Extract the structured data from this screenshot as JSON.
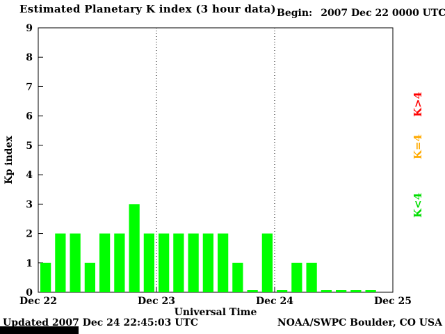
{
  "title": "Estimated Planetary K index (3 hour data)",
  "begin": {
    "label": "Begin:",
    "value": "2007 Dec 22 0000 UTC"
  },
  "legend": [
    {
      "label": "K>4",
      "color": "#ff0000"
    },
    {
      "label": "K=4",
      "color": "#ffaa00"
    },
    {
      "label": "K<4",
      "color": "#00dd00"
    }
  ],
  "footer": {
    "updated": "Updated 2007 Dec 24 22:45:03 UTC",
    "source": "NOAA/SWPC Boulder, CO USA"
  },
  "chart_data": {
    "type": "bar",
    "title": "Estimated Planetary K index (3 hour data)",
    "xlabel": "Universal Time",
    "ylabel": "Kp index",
    "ylim": [
      0,
      9
    ],
    "y_ticks": [
      0,
      1,
      2,
      3,
      4,
      5,
      6,
      7,
      8,
      9
    ],
    "x_ticks": [
      "Dec 22",
      "Dec 23",
      "Dec 24",
      "Dec 25"
    ],
    "bars_per_day": 8,
    "bar_interval_hours": 3,
    "bar_color": "#00ff00",
    "grid": "dotted vertical lines at day boundaries",
    "values": [
      1,
      2,
      2,
      1,
      2,
      2,
      3,
      2,
      2,
      2,
      2,
      2,
      2,
      1,
      0,
      2,
      0,
      1,
      1,
      0,
      0,
      0,
      0
    ]
  }
}
